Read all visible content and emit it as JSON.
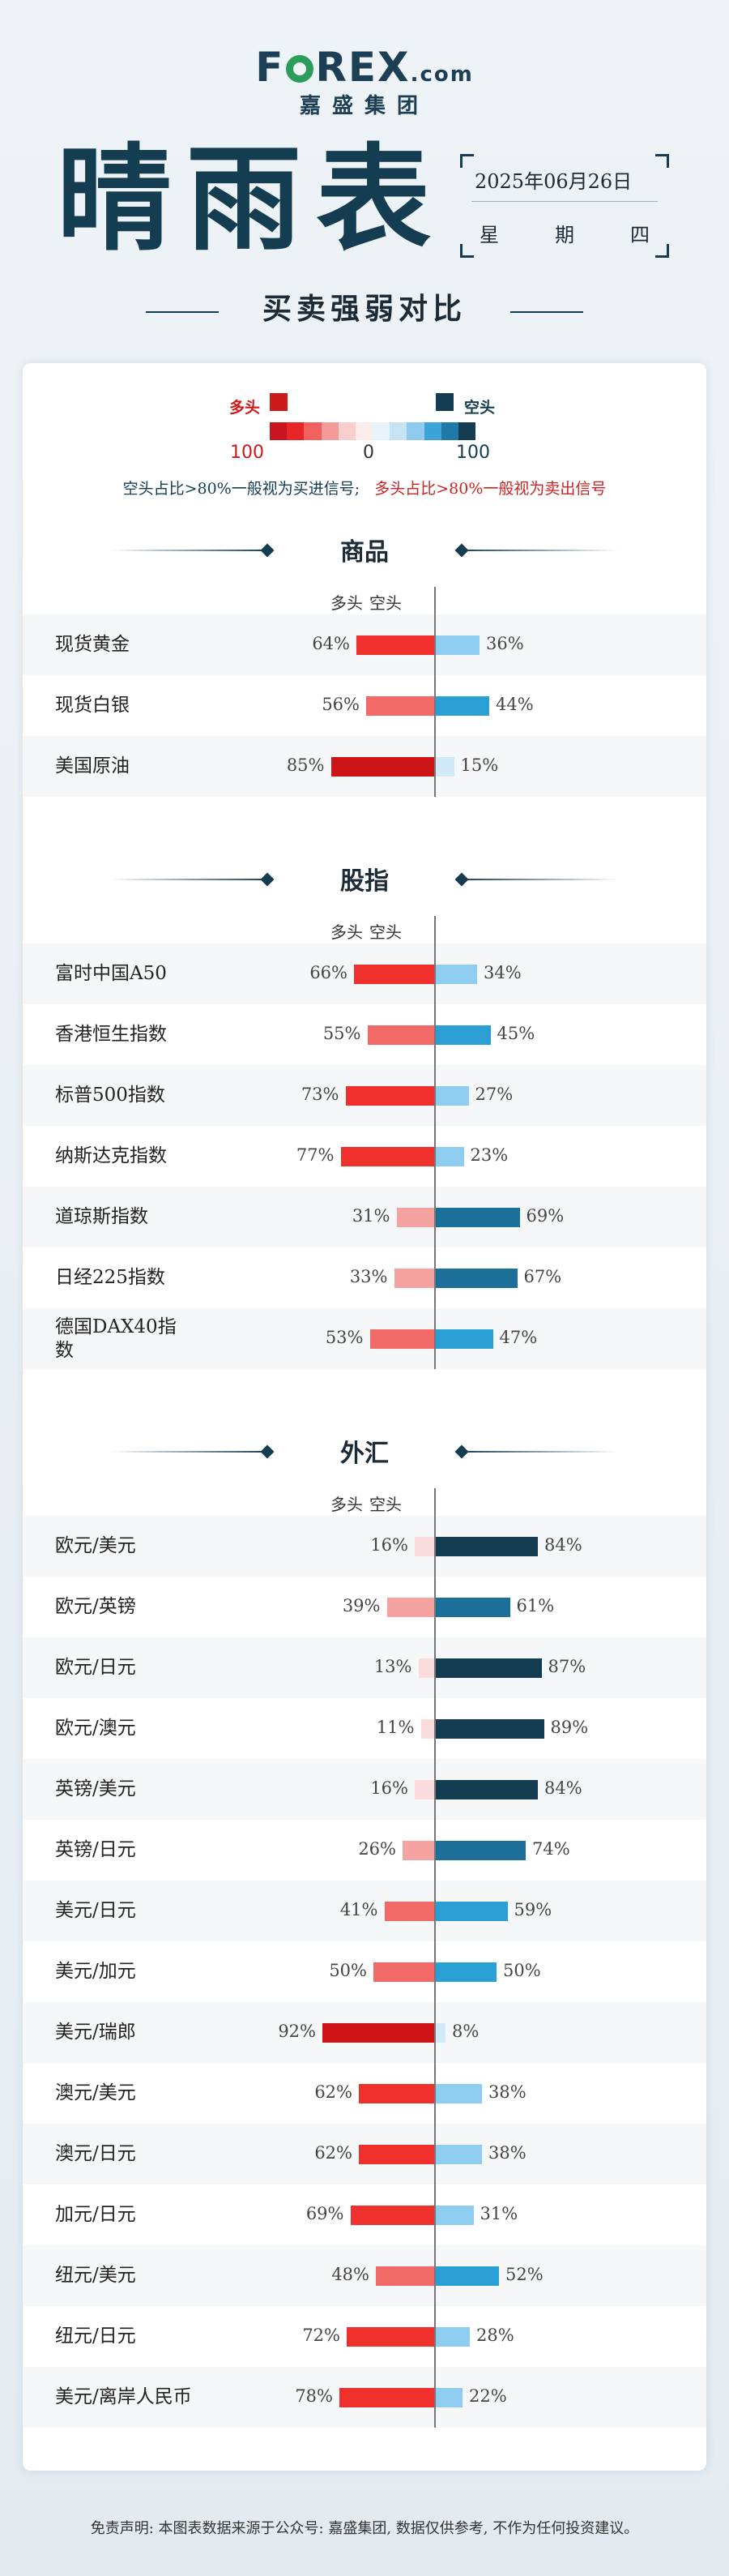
{
  "header": {
    "logo_text": "FOREX",
    "logo_suffix": ".com",
    "logo_sub": "嘉盛集团",
    "title": "晴雨表",
    "date": "2025年06月26日",
    "weekday_chars": [
      "星",
      "期",
      "四"
    ],
    "subtitle": "买卖强弱对比"
  },
  "legend": {
    "long_label": "多头",
    "short_label": "空头",
    "scale_left": "100",
    "scale_mid": "0",
    "scale_right": "100",
    "tip_short": "空头占比>80%一般视为买进信号;",
    "tip_long": "多头占比>80%一般视为卖出信号",
    "long_color": "#cc1a1a",
    "short_color": "#143d52"
  },
  "column_headers": {
    "long": "多头",
    "short": "空头"
  },
  "chart_data": {
    "type": "bar",
    "orientation": "horizontal diverging",
    "sections": [
      {
        "title": "商品",
        "categories": [
          "现货黄金",
          "现货白银",
          "美国原油"
        ],
        "series": [
          {
            "name": "多头",
            "values": [
              64,
              56,
              85
            ]
          },
          {
            "name": "空头",
            "values": [
              36,
              44,
              15
            ]
          }
        ]
      },
      {
        "title": "股指",
        "categories": [
          "富时中国A50",
          "香港恒生指数",
          "标普500指数",
          "纳斯达克指数",
          "道琼斯指数",
          "日经225指数",
          "德国DAX40指数"
        ],
        "series": [
          {
            "name": "多头",
            "values": [
              66,
              55,
              73,
              77,
              31,
              33,
              53
            ]
          },
          {
            "name": "空头",
            "values": [
              34,
              45,
              27,
              23,
              69,
              67,
              47
            ]
          }
        ]
      },
      {
        "title": "外汇",
        "categories": [
          "欧元/美元",
          "欧元/英镑",
          "欧元/日元",
          "欧元/澳元",
          "英镑/美元",
          "英镑/日元",
          "美元/日元",
          "美元/加元",
          "美元/瑞郎",
          "澳元/美元",
          "澳元/日元",
          "加元/日元",
          "纽元/美元",
          "纽元/日元",
          "美元/离岸人民币"
        ],
        "series": [
          {
            "name": "多头",
            "values": [
              16,
              39,
              13,
              11,
              16,
              26,
              41,
              50,
              92,
              62,
              62,
              69,
              48,
              72,
              78
            ]
          },
          {
            "name": "空头",
            "values": [
              84,
              61,
              87,
              89,
              84,
              74,
              59,
              50,
              8,
              38,
              38,
              31,
              52,
              28,
              22
            ]
          }
        ]
      }
    ],
    "value_suffix": "%"
  },
  "disclaimer": "免责声明: 本图表数据来源于公众号: 嘉盛集团, 数据仅供参考, 不作为任何投资建议。"
}
